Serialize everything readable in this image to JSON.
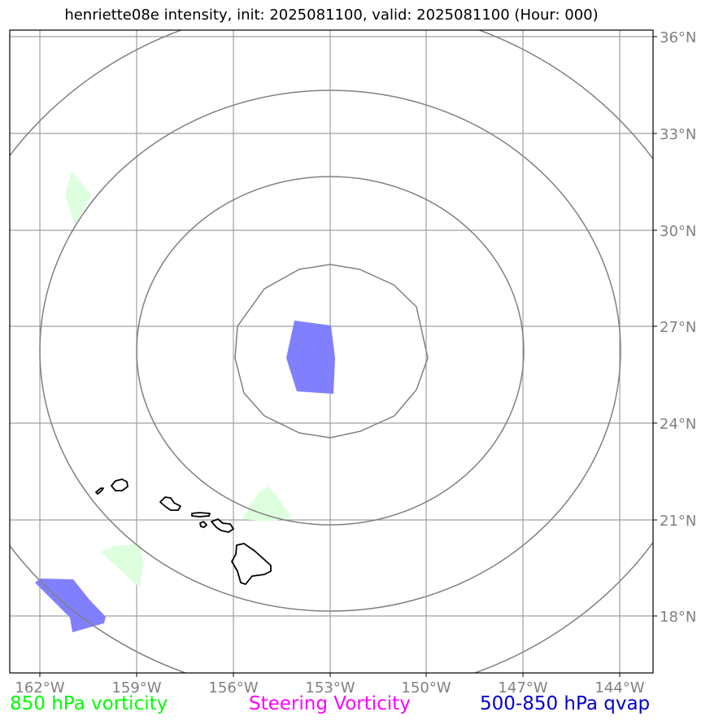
{
  "title": "henriette08e intensity, init: 2025081100, valid: 2025081100 (Hour: 000)",
  "map": {
    "lon_labels": [
      "162°W",
      "159°W",
      "156°W",
      "153°W",
      "150°W",
      "147°W",
      "144°W"
    ],
    "lat_labels": [
      "36°N",
      "33°N",
      "30°N",
      "27°N",
      "24°N",
      "21°N",
      "18°N"
    ],
    "storm_center": {
      "lon": -153,
      "lat": 26.5
    },
    "range_rings": 4,
    "islands": [
      "Niihau",
      "Kauai",
      "Oahu",
      "Molokai",
      "Lanai",
      "Maui",
      "Hawaii"
    ]
  },
  "legend": [
    {
      "label": "850 hPa vorticity",
      "color": "#00ff00"
    },
    {
      "label": "Steering Vorticity",
      "color": "#ff00ff"
    },
    {
      "label": "500-850 hPa qvap",
      "color": "#0000cc"
    }
  ],
  "colors": {
    "qvap_fill": "#8080ff",
    "vorticity_fill": "#ddffdd",
    "grid": "#a0a0a0",
    "ring": "#808080"
  }
}
